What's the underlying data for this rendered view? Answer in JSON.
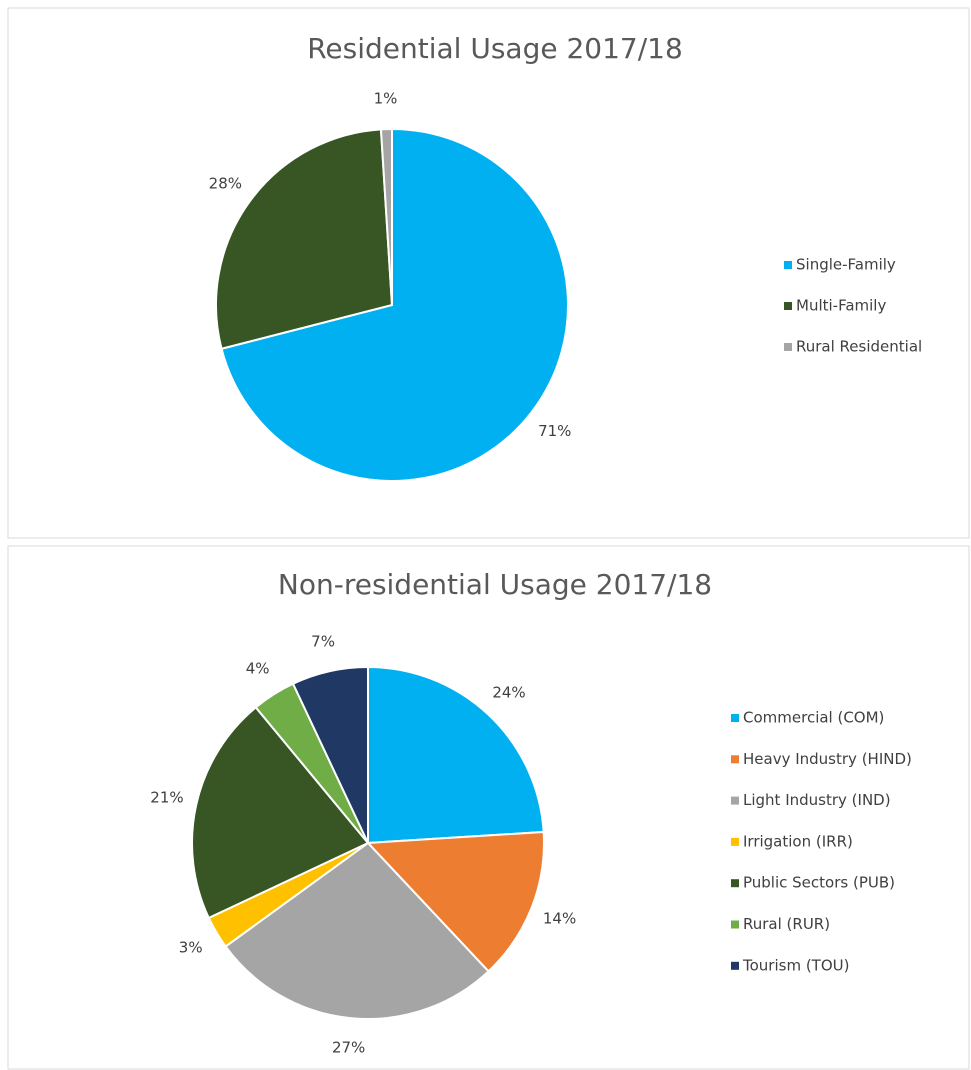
{
  "chart_data": [
    {
      "type": "pie",
      "title": "Residential Usage 2017/18",
      "categories": [
        "Single-Family",
        "Multi-Family",
        "Rural Residential"
      ],
      "values": [
        71,
        28,
        1
      ],
      "value_labels": [
        "71%",
        "28%",
        "1%"
      ],
      "colors": [
        "#00b0f0",
        "#375623",
        "#a5a5a5"
      ],
      "legend": "right"
    },
    {
      "type": "pie",
      "title": "Non-residential Usage 2017/18",
      "categories": [
        "Commercial (COM)",
        "Heavy Industry (HIND)",
        "Light Industry (IND)",
        "Irrigation (IRR)",
        "Public Sectors (PUB)",
        "Rural (RUR)",
        "Tourism (TOU)"
      ],
      "values": [
        24,
        14,
        27,
        3,
        21,
        4,
        7
      ],
      "value_labels": [
        "24%",
        "14%",
        "27%",
        "3%",
        "21%",
        "4%",
        "7%"
      ],
      "colors": [
        "#00b0f0",
        "#ed7d31",
        "#a5a5a5",
        "#ffc000",
        "#375623",
        "#70ad47",
        "#203864"
      ],
      "legend": "right"
    }
  ]
}
